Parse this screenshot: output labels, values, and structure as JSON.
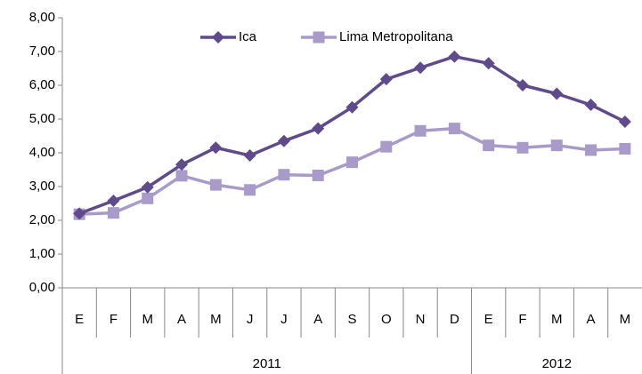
{
  "chart_data": {
    "type": "line",
    "categories": [
      "E",
      "F",
      "M",
      "A",
      "M",
      "J",
      "J",
      "A",
      "S",
      "O",
      "N",
      "D",
      "E",
      "F",
      "M",
      "A",
      "M"
    ],
    "x_groups": [
      {
        "label": "2011",
        "span": 12
      },
      {
        "label": "2012",
        "span": 5
      }
    ],
    "series": [
      {
        "name": "Ica",
        "color": "#5f4b8b",
        "marker": "diamond",
        "values": [
          2.2,
          2.58,
          2.98,
          3.65,
          4.15,
          3.92,
          4.35,
          4.72,
          5.35,
          6.18,
          6.52,
          6.85,
          6.65,
          6.0,
          5.75,
          5.42,
          4.92
        ]
      },
      {
        "name": "Lima Metropolitana",
        "color": "#a99bc9",
        "marker": "square",
        "values": [
          2.18,
          2.22,
          2.65,
          3.32,
          3.05,
          2.9,
          3.35,
          3.33,
          3.72,
          4.18,
          4.65,
          4.72,
          4.22,
          4.15,
          4.22,
          4.08,
          4.12
        ]
      }
    ],
    "ylim": [
      0,
      8
    ],
    "yticks": [
      {
        "value": 0,
        "label": "0,00"
      },
      {
        "value": 1,
        "label": "1,00"
      },
      {
        "value": 2,
        "label": "2,00"
      },
      {
        "value": 3,
        "label": "3,00"
      },
      {
        "value": 4,
        "label": "4,00"
      },
      {
        "value": 5,
        "label": "5,00"
      },
      {
        "value": 6,
        "label": "6,00"
      },
      {
        "value": 7,
        "label": "7,00"
      },
      {
        "value": 8,
        "label": "8,00"
      }
    ],
    "grid": false,
    "legend": "top"
  }
}
